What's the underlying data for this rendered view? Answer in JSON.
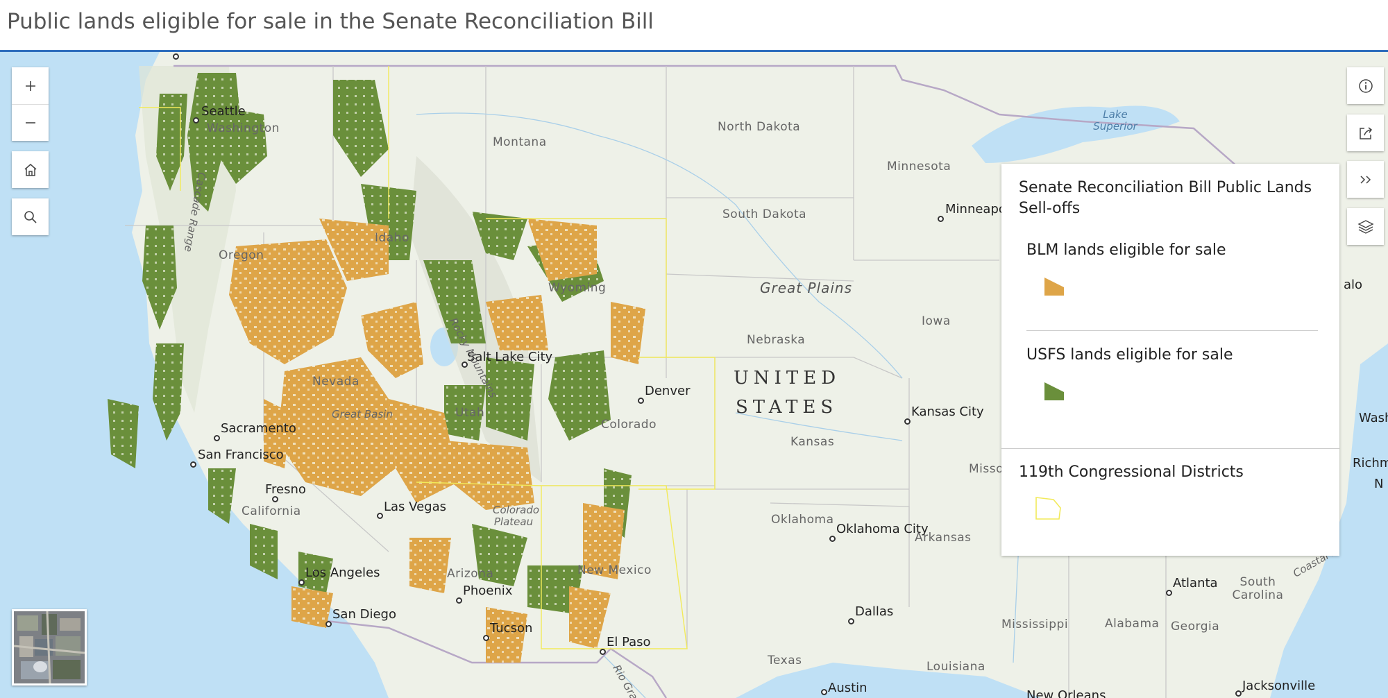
{
  "header": {
    "title": "Public lands eligible for sale in the Senate Reconciliation Bill"
  },
  "widgets": {
    "zoom_in": "+",
    "zoom_out": "−"
  },
  "legend": {
    "title": "Senate Reconciliation Bill Public Lands Sell-offs",
    "items": [
      {
        "label": "BLM lands eligible for sale",
        "color": "#dea548"
      },
      {
        "label": "USFS lands eligible for sale",
        "color": "#6a8f3b"
      }
    ],
    "group": {
      "label": "119th Congressional Districts",
      "color": "#f2ea5a"
    }
  },
  "map_labels": {
    "cities": [
      "Seattle",
      "Minneapolis",
      "Salt Lake City",
      "Denver",
      "Kansas City",
      "Sacramento",
      "San Francisco",
      "Fresno",
      "Las Vegas",
      "Los Angeles",
      "San Diego",
      "Phoenix",
      "Tucson",
      "El Paso",
      "Oklahoma City",
      "Dallas",
      "Austin",
      "Atlanta",
      "Jacksonville",
      "New Orleans"
    ],
    "states": [
      "Washington",
      "Montana",
      "North Dakota",
      "Minnesota",
      "South Dakota",
      "Idaho",
      "Oregon",
      "Wyoming",
      "Nebraska",
      "Iowa",
      "Nevada",
      "Utah",
      "Colorado",
      "Kansas",
      "Missouri",
      "California",
      "Oklahoma",
      "Arkansas",
      "Arizona",
      "New Mexico",
      "Texas",
      "Mississippi",
      "Alabama",
      "Georgia",
      "Louisiana",
      "South Carolina"
    ],
    "physical": [
      "Rocky Mountains",
      "Great Basin",
      "Colorado Plateau",
      "Cascade Range",
      "Coastal Pl",
      "Rio Gra"
    ],
    "great_plains": "Great Plains",
    "country_line1": "UNITED",
    "country_line2": "STATES",
    "water": "Lake Superior",
    "partial": [
      "alo",
      "Wash",
      "Richm",
      "N"
    ]
  },
  "colors": {
    "blm": "#dea548",
    "usfs": "#6a8f3b",
    "districts": "#f2ea5a",
    "water": "#bfe0f5",
    "land": "#eef1e8"
  }
}
